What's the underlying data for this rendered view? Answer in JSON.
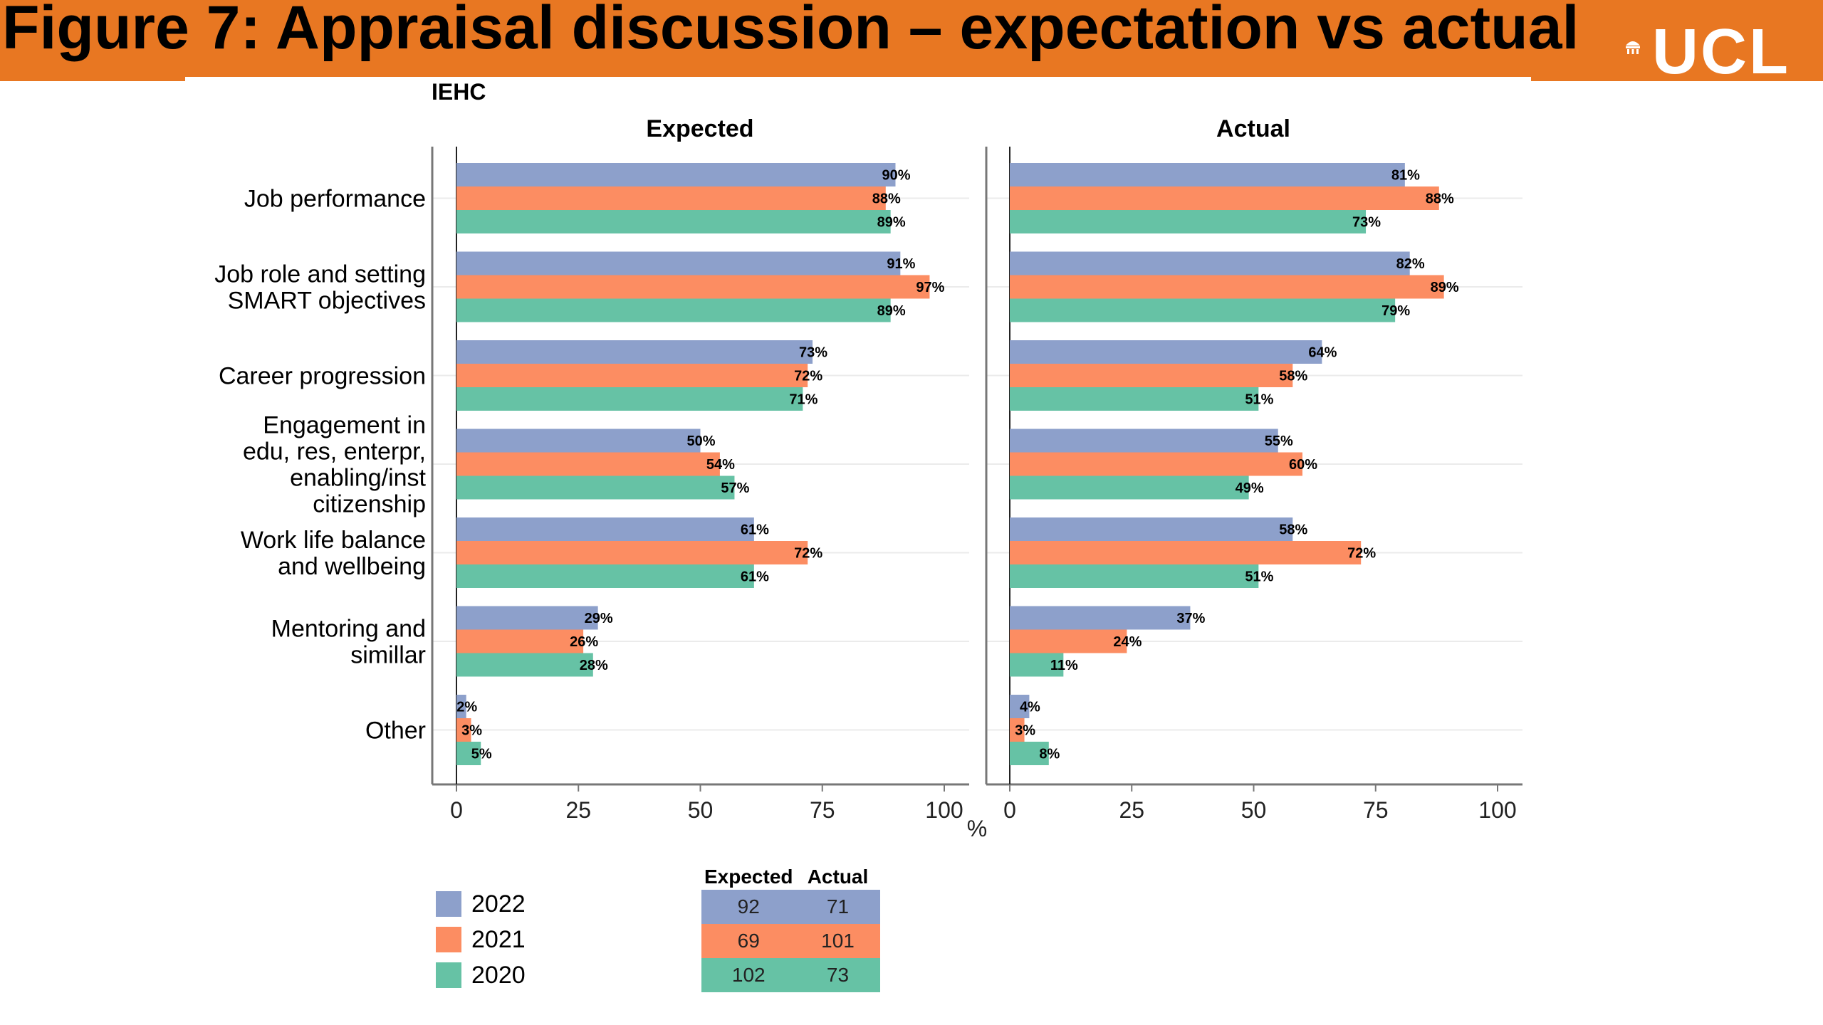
{
  "title": "Figure 7: Appraisal discussion – expectation vs actual",
  "logo": {
    "text": "UCL"
  },
  "colors": {
    "header_bg": "#e87722",
    "s2022": "#8da0cb",
    "s2021": "#fc8d62",
    "s2020": "#66c2a5"
  },
  "chart_data": {
    "type": "bar",
    "orientation": "horizontal",
    "group_label": "IEHC",
    "panels": [
      {
        "title": "Expected",
        "series": [
          {
            "name": "2022",
            "values": [
              90,
              91,
              73,
              50,
              61,
              29,
              2
            ],
            "labels": [
              "90%",
              "91%",
              "73%",
              "50%",
              "61%",
              "29%",
              "2%"
            ]
          },
          {
            "name": "2021",
            "values": [
              88,
              97,
              72,
              54,
              72,
              26,
              3
            ],
            "labels": [
              "88%",
              "97%",
              "72%",
              "54%",
              "72%",
              "26%",
              "3%"
            ]
          },
          {
            "name": "2020",
            "values": [
              89,
              89,
              71,
              57,
              61,
              28,
              5
            ],
            "labels": [
              "89%",
              "89%",
              "71%",
              "57%",
              "61%",
              "28%",
              "5%"
            ]
          }
        ]
      },
      {
        "title": "Actual",
        "series": [
          {
            "name": "2022",
            "values": [
              81,
              82,
              64,
              55,
              58,
              37,
              4
            ],
            "labels": [
              "81%",
              "82%",
              "64%",
              "55%",
              "58%",
              "37%",
              "4%"
            ]
          },
          {
            "name": "2021",
            "values": [
              88,
              89,
              58,
              60,
              72,
              24,
              3
            ],
            "labels": [
              "88%",
              "89%",
              "58%",
              "60%",
              "72%",
              "24%",
              "3%"
            ]
          },
          {
            "name": "2020",
            "values": [
              73,
              79,
              51,
              49,
              51,
              11,
              8
            ],
            "labels": [
              "73%",
              "79%",
              "51%",
              "49%",
              "51%",
              "11%",
              "8%"
            ]
          }
        ]
      }
    ],
    "categories": [
      [
        "Job performance"
      ],
      [
        "Job role and setting",
        "SMART objectives"
      ],
      [
        "Career progression"
      ],
      [
        "Engagement in",
        "edu, res, enterpr,",
        "enabling/inst",
        "citizenship"
      ],
      [
        "Work life balance",
        "and wellbeing"
      ],
      [
        "Mentoring and",
        "simillar"
      ],
      [
        "Other"
      ]
    ],
    "x_ticks": [
      "0",
      "25",
      "50",
      "75",
      "100"
    ],
    "xlim": [
      0,
      100
    ],
    "xlabel": "%",
    "grid": true,
    "legend_position": "bottom-left"
  },
  "legend": [
    {
      "label": "2022",
      "color": "#8da0cb"
    },
    {
      "label": "2021",
      "color": "#fc8d62"
    },
    {
      "label": "2020",
      "color": "#66c2a5"
    }
  ],
  "n_table": {
    "headers": [
      "Expected",
      "Actual"
    ],
    "rows": [
      {
        "values": [
          "92",
          "71"
        ],
        "color": "#8da0cb"
      },
      {
        "values": [
          "69",
          "101"
        ],
        "color": "#fc8d62"
      },
      {
        "values": [
          "102",
          "73"
        ],
        "color": "#66c2a5"
      }
    ]
  }
}
